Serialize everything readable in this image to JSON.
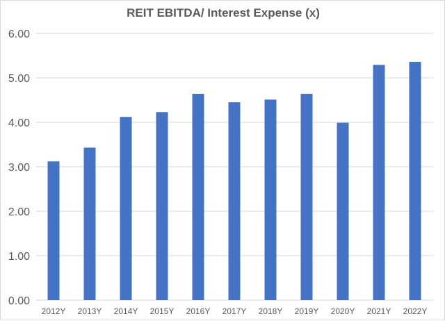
{
  "chart_data": {
    "type": "bar",
    "title": "REIT EBITDA/ Interest Expense (x)",
    "xlabel": "",
    "ylabel": "",
    "categories": [
      "2012Y",
      "2013Y",
      "2014Y",
      "2015Y",
      "2016Y",
      "2017Y",
      "2018Y",
      "2019Y",
      "2020Y",
      "2021Y",
      "2022Y"
    ],
    "values": [
      3.12,
      3.43,
      4.12,
      4.23,
      4.64,
      4.45,
      4.51,
      4.64,
      3.99,
      5.29,
      5.36
    ],
    "ylim": [
      0,
      6
    ],
    "yticks": [
      "0.00",
      "1.00",
      "2.00",
      "3.00",
      "4.00",
      "5.00",
      "6.00"
    ],
    "bar_color": "#4472c4",
    "grid_color": "#d9d9d9",
    "grid": true,
    "legend": "none"
  }
}
